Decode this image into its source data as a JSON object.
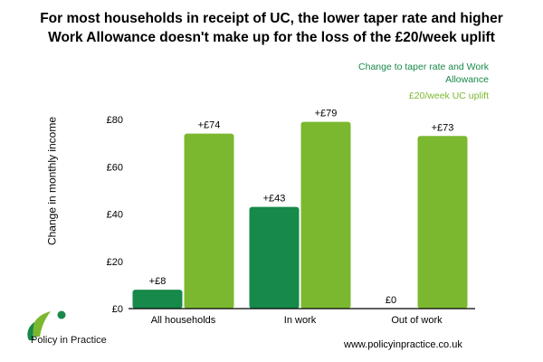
{
  "title_lines": [
    "For most households in receipt of UC, the lower taper rate and higher",
    "Work Allowance doesn't make up for the loss of the £20/week uplift"
  ],
  "logo_text": "Policy in Practice",
  "website": "www.policyinpractice.co.uk",
  "colors": {
    "dark_green": "#17894a",
    "light_green": "#7cb82f",
    "axis": "#000000"
  },
  "chart_data": {
    "type": "bar",
    "title": "For most households in receipt of UC, the lower taper rate and higher Work Allowance doesn't make up for the loss of the £20/week uplift",
    "xlabel": "",
    "ylabel": "Change in monthly income",
    "ylim": [
      0,
      80
    ],
    "yticks": [
      0,
      20,
      40,
      60,
      80
    ],
    "ytick_labels": [
      "£0",
      "£20",
      "£40",
      "£60",
      "£80"
    ],
    "categories": [
      "All households",
      "In work",
      "Out of work"
    ],
    "legend_position": "top-right",
    "grid": false,
    "series": [
      {
        "name": "Change to taper rate and Work Allowance",
        "color": "#17894a",
        "values": [
          8,
          43,
          0
        ],
        "labels": [
          "+£8",
          "+£43",
          "£0"
        ]
      },
      {
        "name": "£20/week UC uplift",
        "color": "#7cb82f",
        "values": [
          74,
          79,
          73
        ],
        "labels": [
          "+£74",
          "+£79",
          "+£73"
        ]
      }
    ]
  }
}
